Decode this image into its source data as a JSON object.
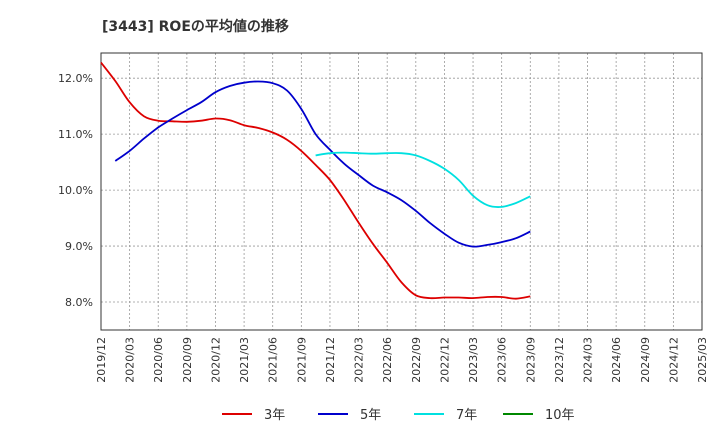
{
  "chart_data": {
    "type": "line",
    "title": "[3443]  ROEの平均値の推移",
    "xlabel": "",
    "ylabel": "",
    "ylim": [
      7.5,
      12.45
    ],
    "y_ticks": [
      8.0,
      9.0,
      10.0,
      11.0,
      12.0
    ],
    "y_tick_labels": [
      "8.0%",
      "9.0%",
      "10.0%",
      "11.0%",
      "12.0%"
    ],
    "x_tick_labels": [
      "2019/12",
      "2020/03",
      "2020/06",
      "2020/09",
      "2020/12",
      "2021/03",
      "2021/06",
      "2021/09",
      "2021/12",
      "2022/03",
      "2022/06",
      "2022/09",
      "2022/12",
      "2023/03",
      "2023/06",
      "2023/09",
      "2023/12",
      "2024/03",
      "2024/06",
      "2024/09",
      "2024/12",
      "2025/03"
    ],
    "grid": true,
    "legend_position": "bottom",
    "series": [
      {
        "name": "3年",
        "color": "#dd0000",
        "values": [
          12.28,
          11.95,
          11.57,
          11.32,
          11.24,
          11.23,
          11.22,
          11.24,
          11.28,
          11.25,
          11.16,
          11.11,
          11.03,
          10.9,
          10.7,
          10.45,
          10.18,
          9.82,
          9.42,
          9.04,
          8.7,
          8.35,
          8.12,
          8.07,
          8.08,
          8.08,
          8.07,
          8.09,
          8.09,
          8.06,
          8.1
        ]
      },
      {
        "name": "5年",
        "color": "#0000cc",
        "values": [
          null,
          10.52,
          10.7,
          10.92,
          11.12,
          11.28,
          11.43,
          11.57,
          11.75,
          11.86,
          11.92,
          11.94,
          11.91,
          11.78,
          11.45,
          11.0,
          10.72,
          10.47,
          10.27,
          10.08,
          9.96,
          9.82,
          9.63,
          9.41,
          9.22,
          9.06,
          8.99,
          9.02,
          9.07,
          9.14,
          9.26
        ]
      },
      {
        "name": "7年",
        "color": "#00e0e0",
        "values": [
          null,
          null,
          null,
          null,
          null,
          null,
          null,
          null,
          null,
          null,
          null,
          null,
          null,
          null,
          null,
          10.62,
          10.66,
          10.67,
          10.66,
          10.65,
          10.66,
          10.66,
          10.62,
          10.52,
          10.38,
          10.18,
          9.9,
          9.73,
          9.7,
          9.77,
          9.89
        ]
      },
      {
        "name": "10年",
        "color": "#008800",
        "values": []
      }
    ]
  }
}
